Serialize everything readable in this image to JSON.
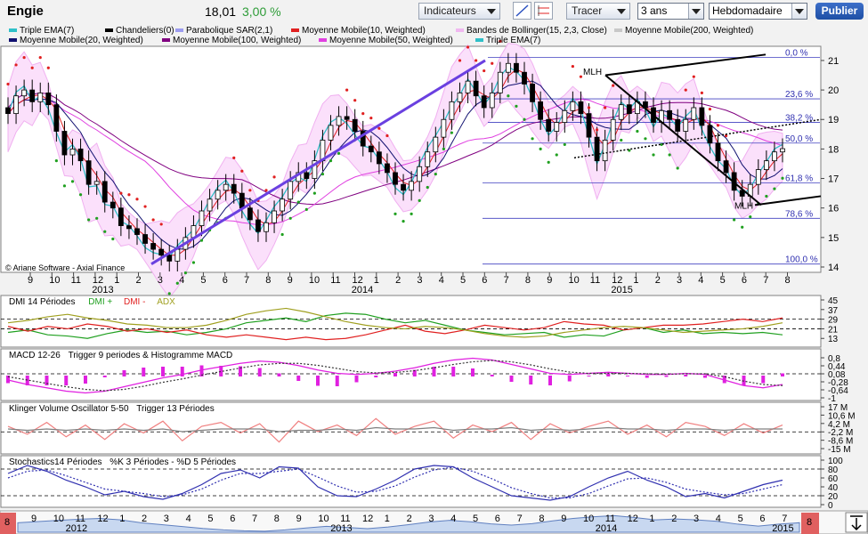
{
  "header": {
    "ticker": "Engie",
    "price": "18,01",
    "change": "3,00 %"
  },
  "toolbar": {
    "indicators_label": "Indicateurs",
    "draw_label": "Tracer",
    "period_value": "3 ans",
    "interval_value": "Hebdomadaire",
    "publish_label": "Publier"
  },
  "legend": [
    {
      "label": "Triple EMA(7)",
      "color": "#2fc0c8"
    },
    {
      "label": "Chandeliers(0)",
      "color": "#000000"
    },
    {
      "label": "Parabolique SAR(2,1)",
      "color": "#9c9cf0"
    },
    {
      "label": "Moyenne Mobile(10, Weighted)",
      "color": "#e02020"
    },
    {
      "label": "Bandes de Bollinger(15, 2,3, Close)",
      "color": "#f0b8f0"
    },
    {
      "label": "Moyenne Mobile(200, Weighted)",
      "color": "#c8c8c8"
    },
    {
      "label": "Moyenne Mobile(20, Weighted)",
      "color": "#101070"
    },
    {
      "label": "Moyenne Mobile(100, Weighted)",
      "color": "#800080"
    },
    {
      "label": "Moyenne Mobile(50, Weighted)",
      "color": "#e040e0"
    },
    {
      "label": "Triple EMA(7)",
      "color": "#2fc0c8"
    }
  ],
  "copyright": "© Ariane Software - Axial Finance",
  "chart_data": [
    {
      "type": "candlestick",
      "ylim": [
        14,
        21.3
      ],
      "yticks": [
        14,
        15,
        16,
        17,
        18,
        19,
        20,
        21
      ],
      "month_ticks": [
        "9",
        "10",
        "11",
        "12",
        "1",
        "2",
        "3",
        "4",
        "5",
        "6",
        "7",
        "8",
        "9",
        "10",
        "11",
        "12",
        "1",
        "2",
        "3",
        "4",
        "5",
        "6",
        "7",
        "8",
        "9",
        "10",
        "11",
        "12",
        "1",
        "2",
        "3",
        "4",
        "5",
        "6",
        "7",
        "8"
      ],
      "year_labels": [
        {
          "year": "2013",
          "at": 4
        },
        {
          "year": "2014",
          "at": 16
        },
        {
          "year": "2015",
          "at": 28
        }
      ],
      "fibonacci": [
        {
          "label": "0,0 %",
          "value": 21.1
        },
        {
          "label": "23,6 %",
          "value": 19.7
        },
        {
          "label": "38,2 %",
          "value": 18.9
        },
        {
          "label": "50,0 %",
          "value": 18.2
        },
        {
          "label": "61,8 %",
          "value": 16.85
        },
        {
          "label": "78,6 %",
          "value": 15.65
        },
        {
          "label": "100,0 %",
          "value": 14.1
        }
      ],
      "annotations": [
        "MLH",
        "MLH"
      ],
      "close": [
        19.2,
        19.8,
        20.0,
        19.6,
        19.9,
        19.5,
        18.6,
        17.8,
        18.0,
        17.6,
        16.8,
        16.9,
        16.2,
        16.0,
        15.4,
        15.3,
        15.1,
        14.8,
        14.6,
        14.4,
        14.2,
        14.6,
        15.0,
        15.4,
        15.9,
        16.3,
        16.6,
        16.8,
        16.5,
        16.0,
        15.6,
        15.2,
        15.5,
        15.9,
        16.3,
        16.9,
        17.2,
        17.0,
        17.6,
        18.3,
        18.8,
        19.1,
        19.0,
        18.6,
        18.1,
        17.9,
        17.5,
        17.2,
        16.8,
        16.6,
        16.9,
        17.4,
        17.9,
        18.4,
        19.0,
        19.6,
        19.9,
        20.3,
        19.8,
        19.4,
        19.9,
        20.6,
        20.9,
        20.6,
        20.2,
        19.6,
        19.0,
        18.6,
        18.9,
        19.3,
        19.6,
        19.2,
        18.4,
        17.6,
        18.3,
        19.0,
        19.5,
        19.2,
        19.6,
        19.4,
        18.9,
        19.3,
        19.0,
        18.6,
        19.0,
        19.4,
        18.8,
        18.2,
        17.6,
        17.2,
        16.6,
        16.4,
        16.8,
        17.3,
        17.6,
        17.9,
        18.01
      ]
    },
    {
      "type": "line",
      "title": "DMI 14 Périodes",
      "series_names": [
        "DMI +",
        "DMI -",
        "ADX"
      ],
      "colors": [
        "#20a020",
        "#e02020",
        "#a0a020"
      ],
      "ylim": [
        8,
        45
      ],
      "yticks": [
        45,
        37,
        29,
        21,
        13
      ],
      "series": [
        [
          18,
          20,
          16,
          15,
          13,
          17,
          20,
          18,
          19,
          16,
          18,
          21,
          26,
          28,
          30,
          27,
          32,
          34,
          33,
          29,
          26,
          28,
          24,
          20,
          18,
          16,
          17,
          18,
          14,
          16,
          15,
          20,
          22,
          18,
          20,
          17,
          18,
          17,
          18,
          16
        ],
        [
          23,
          19,
          23,
          21,
          25,
          23,
          19,
          21,
          18,
          20,
          16,
          14,
          16,
          14,
          12,
          14,
          12,
          13,
          16,
          20,
          24,
          19,
          17,
          20,
          24,
          22,
          20,
          22,
          27,
          25,
          24,
          20,
          22,
          24,
          24,
          25,
          27,
          29,
          27,
          30
        ],
        [
          26,
          28,
          31,
          33,
          30,
          28,
          25,
          24,
          22,
          22,
          24,
          28,
          33,
          36,
          38,
          35,
          31,
          27,
          24,
          22,
          21,
          23,
          22,
          20,
          17,
          15,
          14,
          15,
          18,
          20,
          22,
          23,
          22,
          20,
          18,
          19,
          20,
          21,
          23,
          26
        ]
      ]
    },
    {
      "type": "line",
      "title": "MACD 12-26",
      "title_suffix": "Trigger 9 periodes & Histogramme MACD",
      "ylim": [
        -1,
        1
      ],
      "yticks": [
        0.8,
        0.44,
        0.08,
        -0.28,
        -0.64,
        -1
      ],
      "tick_labels": [
        "0,8",
        "0,44",
        "0,08",
        "-0,28",
        "-0,64",
        "-1"
      ],
      "series": [
        [
          -0.2,
          -0.4,
          -0.55,
          -0.7,
          -0.78,
          -0.7,
          -0.5,
          -0.3,
          -0.1,
          0.05,
          0.25,
          0.4,
          0.55,
          0.65,
          0.6,
          0.45,
          0.25,
          0.1,
          0.05,
          0.1,
          0.2,
          0.35,
          0.55,
          0.7,
          0.78,
          0.7,
          0.5,
          0.3,
          0.1,
          0.05,
          0.1,
          0.15,
          0.1,
          0.05,
          0.05,
          0.1,
          0.05,
          -0.2,
          -0.45,
          -0.55,
          -0.4
        ],
        [
          -0.05,
          -0.2,
          -0.35,
          -0.5,
          -0.62,
          -0.68,
          -0.62,
          -0.48,
          -0.3,
          -0.15,
          0.02,
          0.18,
          0.34,
          0.48,
          0.55,
          0.55,
          0.46,
          0.32,
          0.18,
          0.12,
          0.14,
          0.22,
          0.35,
          0.5,
          0.62,
          0.68,
          0.62,
          0.48,
          0.3,
          0.16,
          0.1,
          0.1,
          0.1,
          0.08,
          0.06,
          0.08,
          0.08,
          -0.05,
          -0.25,
          -0.4,
          -0.45
        ]
      ]
    },
    {
      "type": "line",
      "title": "Klinger Volume Oscillator 5-50",
      "title_suffix": "Trigger 13 Périodes",
      "ylim": [
        -17,
        17
      ],
      "yticks": [
        17,
        10.6,
        4.2,
        -2.2,
        -8.6,
        -15
      ],
      "tick_labels": [
        "17 M",
        "10,6 M",
        "4,2 M",
        "-2,2 M",
        "-8,6 M",
        "-15 M"
      ],
      "series": [
        [
          2,
          -4,
          5,
          -6,
          3,
          -8,
          4,
          -3,
          6,
          -9,
          2,
          5,
          -3,
          4,
          -10,
          6,
          -2,
          3,
          -5,
          8,
          -4,
          2,
          6,
          -7,
          3,
          -2,
          5,
          -8,
          4,
          -3,
          2,
          6,
          -4,
          3,
          -6,
          5,
          2,
          -5,
          4,
          -3,
          3
        ],
        [
          0,
          -1,
          0,
          -1,
          0,
          -1,
          0,
          -1,
          0,
          -2,
          -1,
          0,
          0,
          0,
          -2,
          -1,
          -1,
          0,
          -1,
          1,
          0,
          0,
          1,
          -1,
          0,
          0,
          1,
          -1,
          0,
          -1,
          0,
          1,
          0,
          0,
          -1,
          0,
          0,
          -1,
          0,
          0,
          0
        ]
      ]
    },
    {
      "type": "line",
      "title": "Stochastics14 Périodes",
      "title_suffix": "%K 3 Périodes  -  %D 5 Périodes",
      "ylim": [
        0,
        100
      ],
      "yticks": [
        100,
        80,
        60,
        40,
        20,
        0
      ],
      "series": [
        [
          70,
          88,
          75,
          55,
          40,
          22,
          30,
          18,
          12,
          25,
          45,
          70,
          78,
          60,
          85,
          82,
          40,
          20,
          18,
          35,
          55,
          80,
          88,
          85,
          60,
          40,
          20,
          15,
          10,
          18,
          40,
          60,
          75,
          55,
          40,
          18,
          25,
          15,
          30,
          45,
          55
        ],
        [
          60,
          75,
          78,
          65,
          50,
          35,
          30,
          25,
          18,
          22,
          35,
          55,
          70,
          70,
          75,
          80,
          62,
          42,
          28,
          30,
          42,
          62,
          78,
          84,
          75,
          58,
          38,
          25,
          15,
          15,
          25,
          42,
          58,
          60,
          50,
          35,
          28,
          22,
          25,
          35,
          45
        ]
      ]
    }
  ],
  "nav": {
    "left_month": "8",
    "right_month": "8",
    "month_ticks": [
      "9",
      "10",
      "11",
      "12",
      "1",
      "2",
      "3",
      "4",
      "5",
      "6",
      "7",
      "8",
      "9",
      "10",
      "11",
      "12",
      "1",
      "2",
      "3",
      "4",
      "5",
      "6",
      "7",
      "8",
      "9",
      "10",
      "11",
      "12",
      "1",
      "2",
      "3",
      "4",
      "5",
      "6",
      "7"
    ],
    "year_labels": [
      {
        "year": "2012",
        "at": 2
      },
      {
        "year": "2013",
        "at": 14
      },
      {
        "year": "2014",
        "at": 26
      },
      {
        "year": "2015",
        "at": 34
      }
    ],
    "series": [
      18,
      18.5,
      19,
      19.5,
      19.8,
      19.2,
      18,
      17.2,
      16.4,
      15.6,
      15,
      14.6,
      14.4,
      15,
      15.8,
      16.5,
      16,
      15.5,
      16.2,
      17.2,
      18.3,
      19,
      18.4,
      17.5,
      17,
      17.6,
      18.8,
      19.8,
      20.5,
      21,
      20.2,
      19.2,
      19.6,
      19.2,
      18.6,
      17.4,
      16.6,
      17.4,
      18
    ]
  }
}
